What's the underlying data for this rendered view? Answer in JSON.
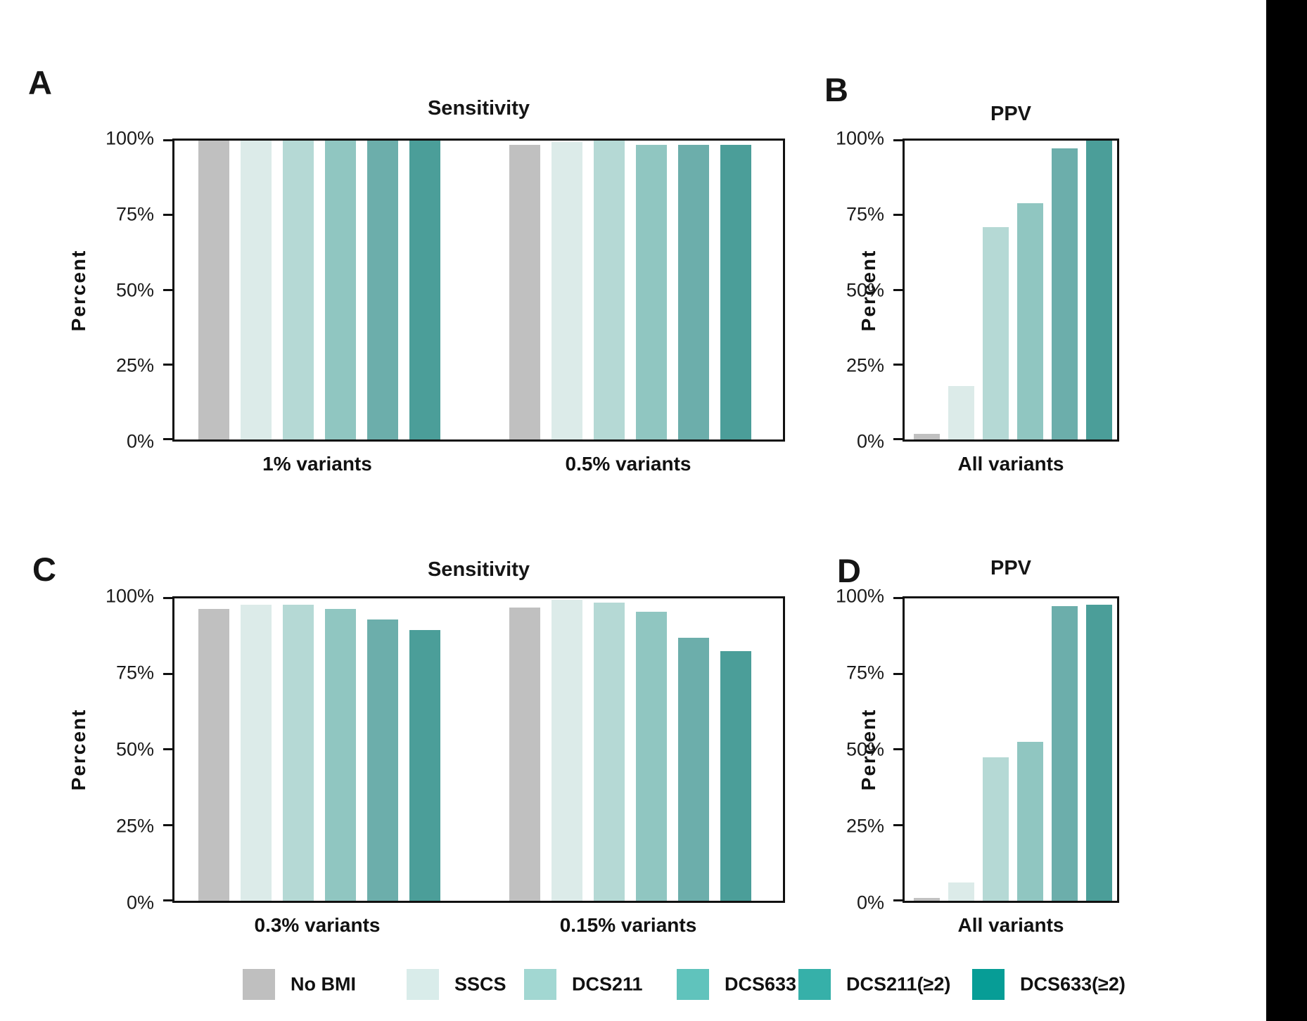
{
  "figure": {
    "background": "#ffffff",
    "side_strip_color": "#000000",
    "text_color": "#111111",
    "axis_color": "#111111"
  },
  "palette": {
    "series_names": [
      "No BMI",
      "SSCS",
      "DCS211",
      "DCS633",
      "DCS211(≥2)",
      "DCS633(≥2)"
    ],
    "bar_colors": [
      "#c0c0c0",
      "#dcebe9",
      "#b5d9d5",
      "#90c6c1",
      "#6caeab",
      "#4b9e99"
    ],
    "legend_colors": [
      "#bfbfbf",
      "#d9ecea",
      "#a2d7d2",
      "#60c3bc",
      "#36b0a9",
      "#079d96"
    ]
  },
  "chart_data": [
    {
      "panel_label": "A",
      "type": "bar",
      "title": "Sensitivity",
      "ylabel": "Percent",
      "ylim": [
        0,
        100
      ],
      "ytick_labels": [
        "100%",
        "75%",
        "50%",
        "25%",
        "0%"
      ],
      "grid": false,
      "categories": [
        "1% variants",
        "0.5% variants"
      ],
      "series": [
        {
          "name": "No BMI",
          "values": [
            100,
            98.5
          ]
        },
        {
          "name": "SSCS",
          "values": [
            100,
            99.5
          ]
        },
        {
          "name": "DCS211",
          "values": [
            100,
            100
          ]
        },
        {
          "name": "DCS633",
          "values": [
            100,
            98.5
          ]
        },
        {
          "name": "DCS211(≥2)",
          "values": [
            100,
            98.5
          ]
        },
        {
          "name": "DCS633(≥2)",
          "values": [
            100,
            98.5
          ]
        }
      ]
    },
    {
      "panel_label": "B",
      "type": "bar",
      "title": "PPV",
      "ylabel": "Percent",
      "ylim": [
        0,
        100
      ],
      "ytick_labels": [
        "100%",
        "75%",
        "50%",
        "25%",
        "0%"
      ],
      "grid": false,
      "categories": [
        "All variants"
      ],
      "series": [
        {
          "name": "No BMI",
          "values": [
            2
          ]
        },
        {
          "name": "SSCS",
          "values": [
            18
          ]
        },
        {
          "name": "DCS211",
          "values": [
            71
          ]
        },
        {
          "name": "DCS633",
          "values": [
            79
          ]
        },
        {
          "name": "DCS211(≥2)",
          "values": [
            97.5
          ]
        },
        {
          "name": "DCS633(≥2)",
          "values": [
            100
          ]
        }
      ]
    },
    {
      "panel_label": "C",
      "type": "bar",
      "title": "Sensitivity",
      "ylabel": "Percent",
      "ylim": [
        0,
        100
      ],
      "ytick_labels": [
        "100%",
        "75%",
        "50%",
        "25%",
        "0%"
      ],
      "grid": false,
      "categories": [
        "0.3% variants",
        "0.15% variants"
      ],
      "series": [
        {
          "name": "No BMI",
          "values": [
            96.5,
            97
          ]
        },
        {
          "name": "SSCS",
          "values": [
            98,
            99.5
          ]
        },
        {
          "name": "DCS211",
          "values": [
            98,
            98.5
          ]
        },
        {
          "name": "DCS633",
          "values": [
            96.5,
            95.5
          ]
        },
        {
          "name": "DCS211(≥2)",
          "values": [
            93,
            87
          ]
        },
        {
          "name": "DCS633(≥2)",
          "values": [
            89.5,
            82.5
          ]
        }
      ]
    },
    {
      "panel_label": "D",
      "type": "bar",
      "title": "PPV",
      "ylabel": "Percent",
      "ylim": [
        0,
        100
      ],
      "ytick_labels": [
        "100%",
        "75%",
        "50%",
        "25%",
        "0%"
      ],
      "grid": false,
      "categories": [
        "All variants"
      ],
      "series": [
        {
          "name": "No BMI",
          "values": [
            1
          ]
        },
        {
          "name": "SSCS",
          "values": [
            6
          ]
        },
        {
          "name": "DCS211",
          "values": [
            47.5
          ]
        },
        {
          "name": "DCS633",
          "values": [
            52.5
          ]
        },
        {
          "name": "DCS211(≥2)",
          "values": [
            97.5
          ]
        },
        {
          "name": "DCS633(≥2)",
          "values": [
            98
          ]
        }
      ]
    }
  ],
  "legend": {
    "items": [
      "No BMI",
      "SSCS",
      "DCS211",
      "DCS633",
      "DCS211(≥2)",
      "DCS633(≥2)"
    ]
  }
}
